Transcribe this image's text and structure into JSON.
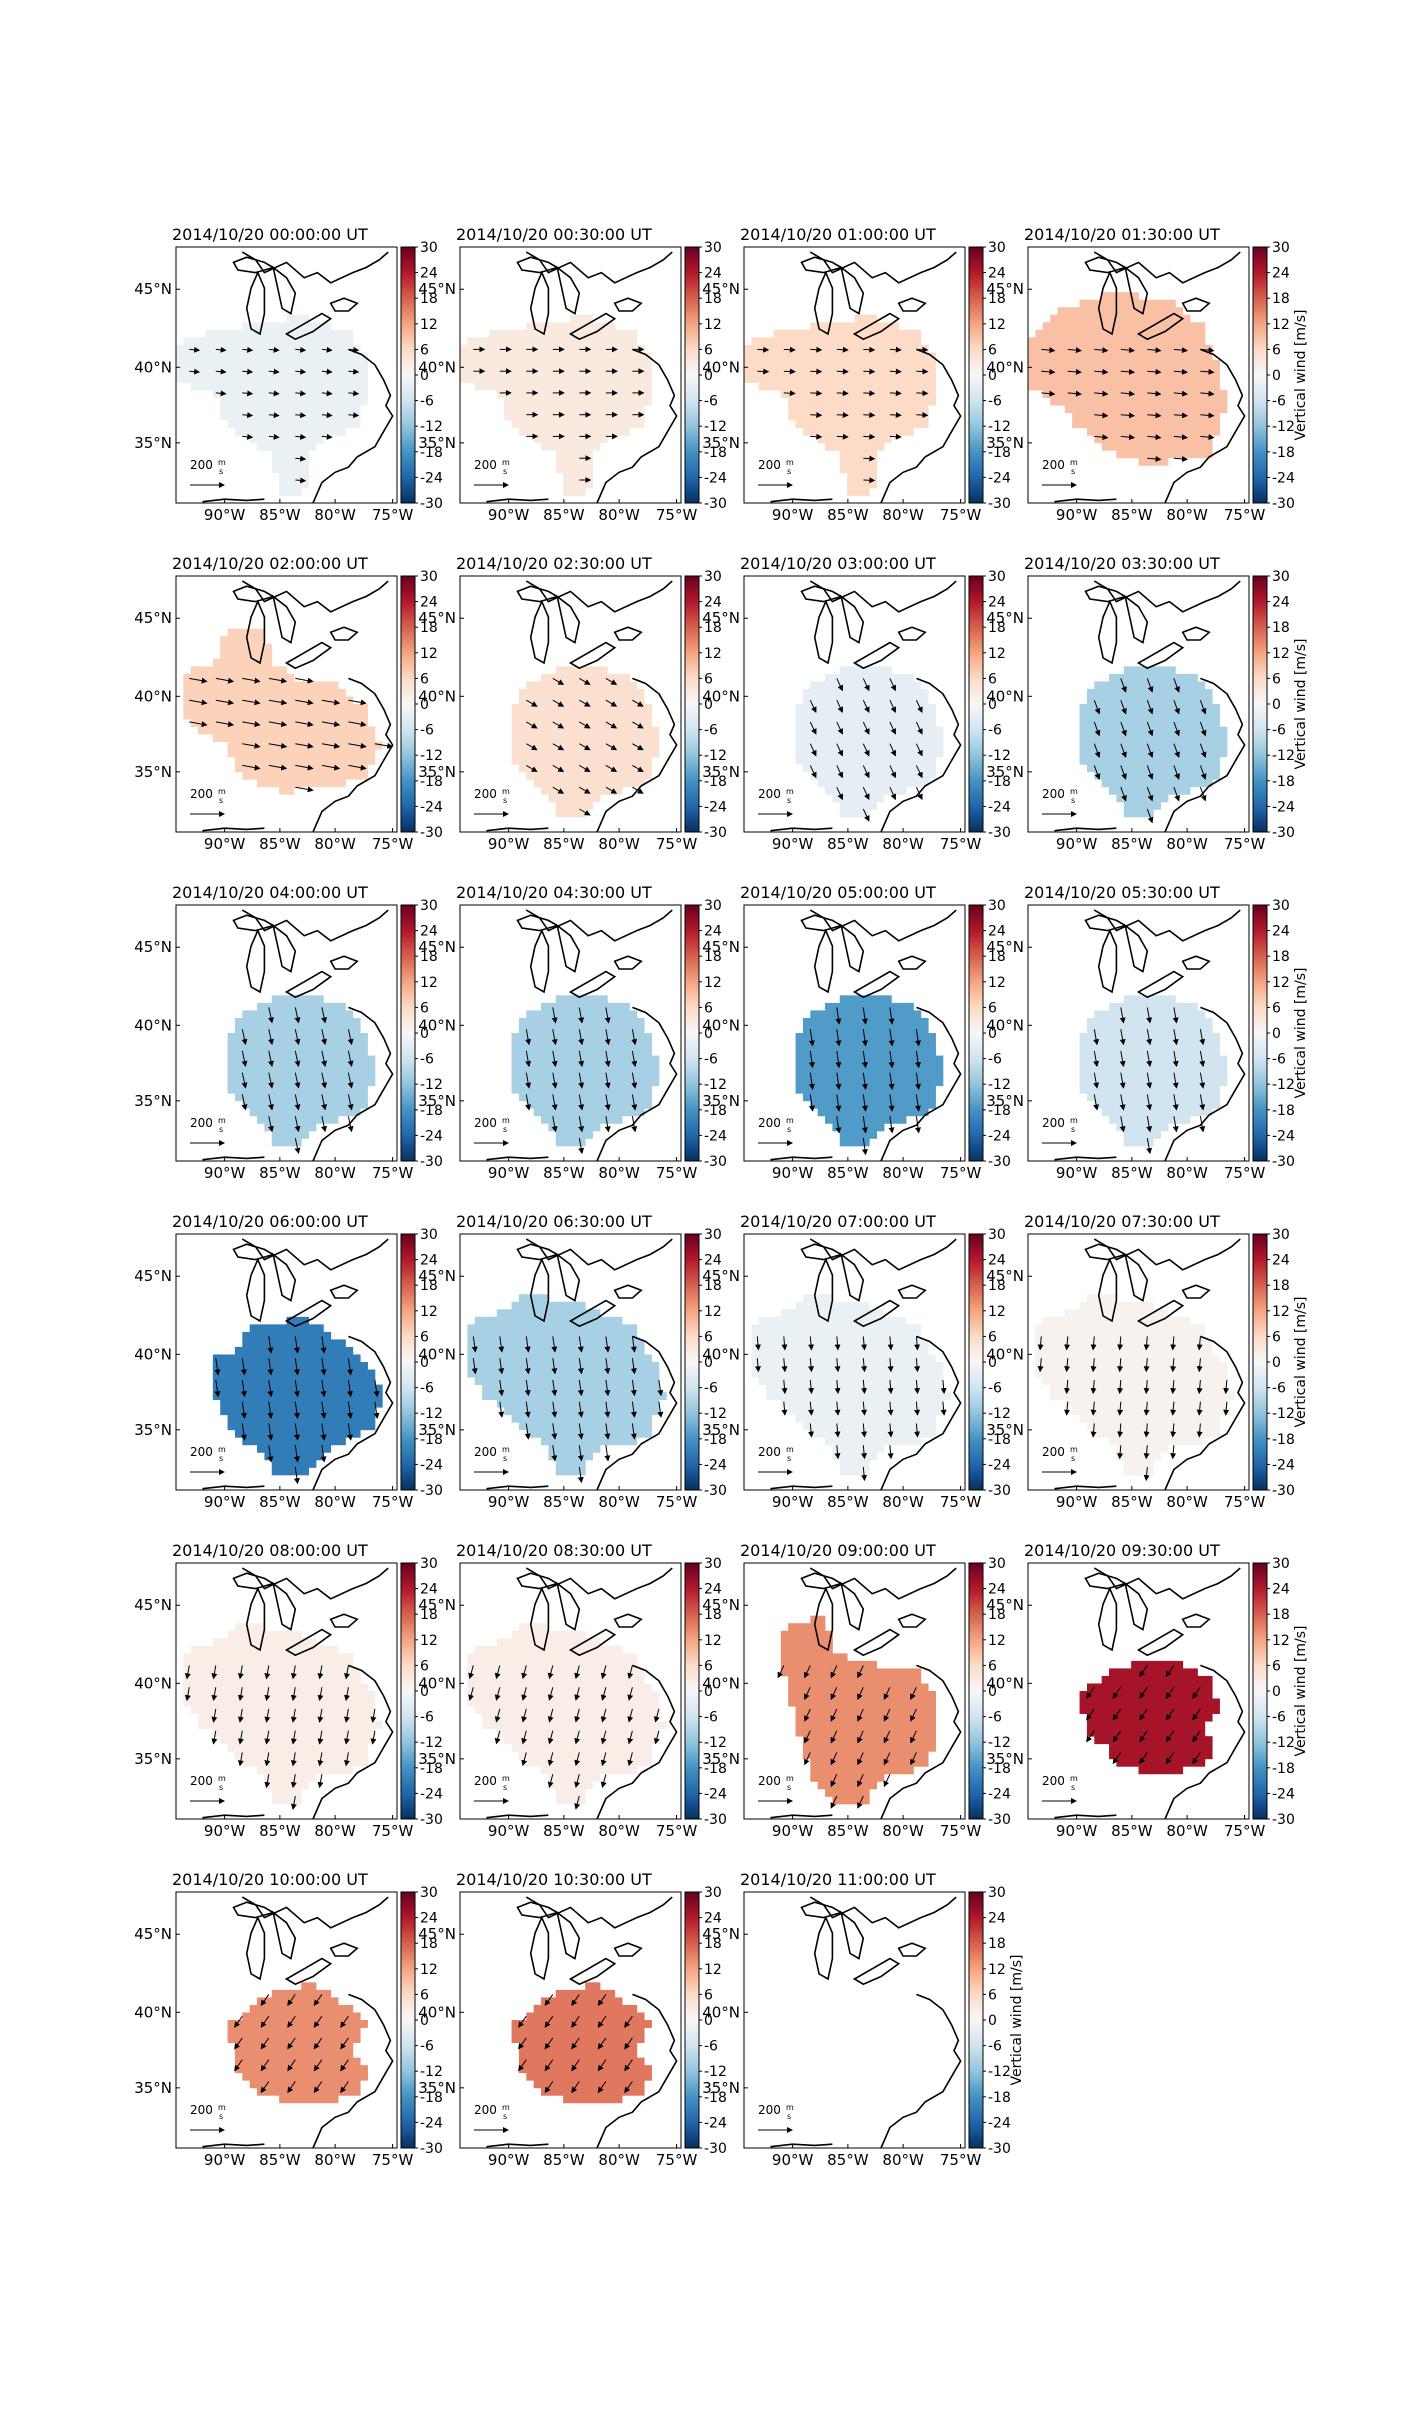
{
  "chart_data": {
    "type": "heatmap",
    "colorbar": {
      "label": "Vertical wind [m/s]",
      "range": [
        -30,
        30
      ],
      "ticks": [
        -30,
        -24,
        -18,
        -12,
        -6,
        0,
        6,
        12,
        18,
        24,
        30
      ],
      "colormap": "RdBu_r",
      "colors": [
        "#053061",
        "#2166ac",
        "#4393c3",
        "#92c5de",
        "#d1e5f0",
        "#f7f7f7",
        "#fddbc7",
        "#f4a582",
        "#d6604d",
        "#b2182b",
        "#67001f"
      ]
    },
    "map": {
      "lon_ticks": [
        "90°W",
        "85°W",
        "80°W",
        "75°W"
      ],
      "lat_ticks": [
        "45°N",
        "40°N",
        "35°N"
      ],
      "lon_range": [
        -94,
        -75
      ],
      "lat_range": [
        31,
        48
      ],
      "reference_vector": {
        "label": "200",
        "unit_num": "m",
        "unit_den": "s"
      }
    },
    "panels": [
      {
        "title": "2014/10/20 00:00:00 UT",
        "value": -2,
        "region": "north",
        "arrow_angle": 5,
        "arrow_len": 0.45,
        "show_colorbar_label": false
      },
      {
        "title": "2014/10/20 00:30:00 UT",
        "value": 3,
        "region": "north",
        "arrow_angle": 0,
        "arrow_len": 0.5,
        "show_colorbar_label": false
      },
      {
        "title": "2014/10/20 01:00:00 UT",
        "value": 6,
        "region": "north",
        "arrow_angle": 3,
        "arrow_len": 0.5,
        "show_colorbar_label": false
      },
      {
        "title": "2014/10/20 01:30:00 UT",
        "value": 9,
        "region": "mid",
        "arrow_angle": 5,
        "arrow_len": 0.6,
        "show_colorbar_label": true
      },
      {
        "title": "2014/10/20 02:00:00 UT",
        "value": 7,
        "region": "west",
        "arrow_angle": 10,
        "arrow_len": 0.8,
        "show_colorbar_label": false
      },
      {
        "title": "2014/10/20 02:30:00 UT",
        "value": 5,
        "region": "south",
        "arrow_angle": 30,
        "arrow_len": 0.55,
        "show_colorbar_label": false
      },
      {
        "title": "2014/10/20 03:00:00 UT",
        "value": -3,
        "region": "south",
        "arrow_angle": 65,
        "arrow_len": 0.6,
        "show_colorbar_label": false
      },
      {
        "title": "2014/10/20 03:30:00 UT",
        "value": -10,
        "region": "south",
        "arrow_angle": 70,
        "arrow_len": 0.65,
        "show_colorbar_label": true
      },
      {
        "title": "2014/10/20 04:00:00 UT",
        "value": -10,
        "region": "south",
        "arrow_angle": 78,
        "arrow_len": 0.7,
        "show_colorbar_label": false
      },
      {
        "title": "2014/10/20 04:30:00 UT",
        "value": -10,
        "region": "south",
        "arrow_angle": 80,
        "arrow_len": 0.7,
        "show_colorbar_label": false
      },
      {
        "title": "2014/10/20 05:00:00 UT",
        "value": -17,
        "region": "south",
        "arrow_angle": 82,
        "arrow_len": 0.75,
        "show_colorbar_label": false
      },
      {
        "title": "2014/10/20 05:30:00 UT",
        "value": -6,
        "region": "south",
        "arrow_angle": 80,
        "arrow_len": 0.7,
        "show_colorbar_label": true
      },
      {
        "title": "2014/10/20 06:00:00 UT",
        "value": -21,
        "region": "center",
        "arrow_angle": 82,
        "arrow_len": 0.75,
        "show_colorbar_label": false
      },
      {
        "title": "2014/10/20 06:30:00 UT",
        "value": -10,
        "region": "wide",
        "arrow_angle": 82,
        "arrow_len": 0.7,
        "show_colorbar_label": false
      },
      {
        "title": "2014/10/20 07:00:00 UT",
        "value": -2,
        "region": "wide",
        "arrow_angle": 85,
        "arrow_len": 0.6,
        "show_colorbar_label": false
      },
      {
        "title": "2014/10/20 07:30:00 UT",
        "value": 1,
        "region": "wide",
        "arrow_angle": 95,
        "arrow_len": 0.6,
        "show_colorbar_label": true
      },
      {
        "title": "2014/10/20 08:00:00 UT",
        "value": 2,
        "region": "wide",
        "arrow_angle": 100,
        "arrow_len": 0.6,
        "show_colorbar_label": false
      },
      {
        "title": "2014/10/20 08:30:00 UT",
        "value": 2,
        "region": "wide",
        "arrow_angle": 105,
        "arrow_len": 0.6,
        "show_colorbar_label": false
      },
      {
        "title": "2014/10/20 09:00:00 UT",
        "value": 14,
        "region": "lake",
        "arrow_angle": 115,
        "arrow_len": 0.6,
        "show_colorbar_label": false
      },
      {
        "title": "2014/10/20 09:30:00 UT",
        "value": 25,
        "region": "ohio",
        "arrow_angle": 125,
        "arrow_len": 0.6,
        "show_colorbar_label": true
      },
      {
        "title": "2014/10/20 10:00:00 UT",
        "value": 14,
        "region": "ohio2",
        "arrow_angle": 125,
        "arrow_len": 0.6,
        "show_colorbar_label": false
      },
      {
        "title": "2014/10/20 10:30:00 UT",
        "value": 16,
        "region": "ohio2",
        "arrow_angle": 125,
        "arrow_len": 0.6,
        "show_colorbar_label": false
      },
      {
        "title": "2014/10/20 11:00:00 UT",
        "value": null,
        "region": "none",
        "arrow_angle": 0,
        "arrow_len": 0,
        "show_colorbar_label": true
      }
    ]
  }
}
